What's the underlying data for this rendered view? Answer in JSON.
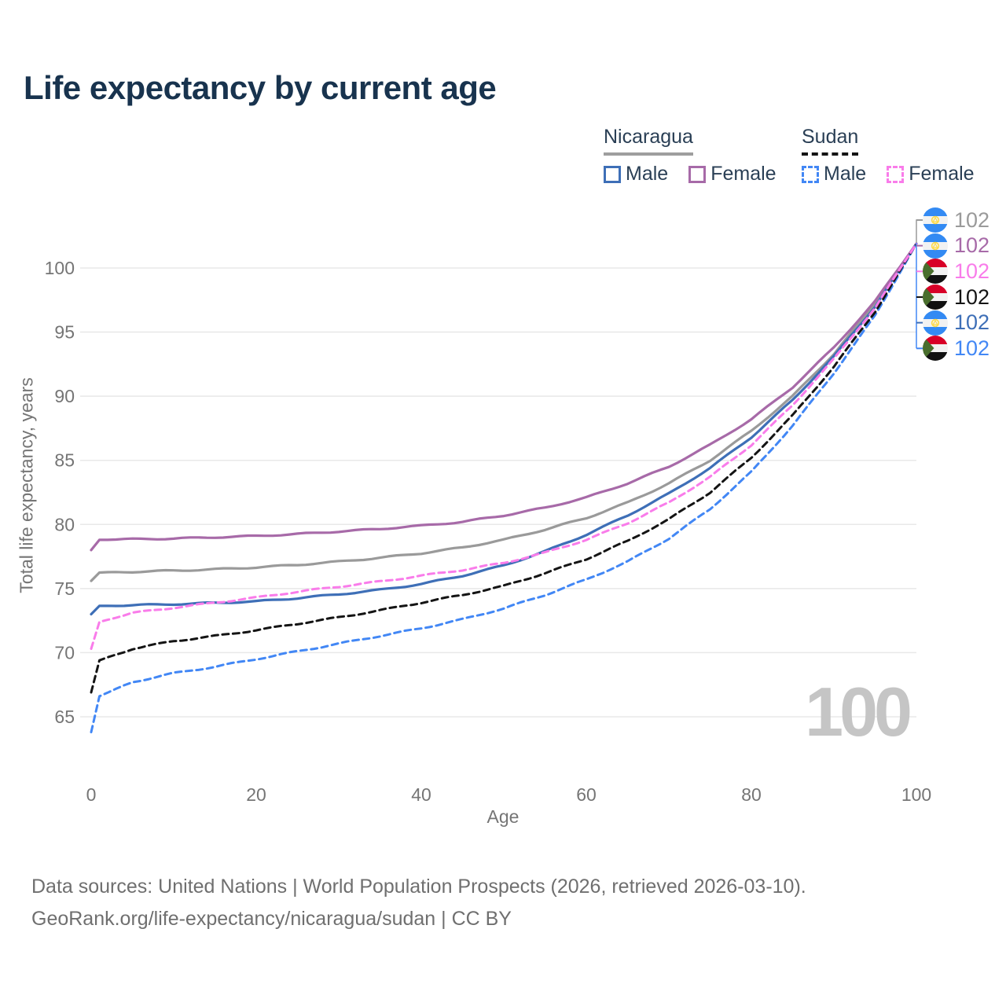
{
  "title": "Life expectancy by current age",
  "watermark": "100",
  "legend": {
    "groups": [
      {
        "name": "Nicaragua",
        "line_style": "solid",
        "underline_color": "#9e9e9e",
        "items": [
          {
            "label": "Male",
            "color": "#3e6fb7",
            "dash": false
          },
          {
            "label": "Female",
            "color": "#a76aa8",
            "dash": false
          }
        ]
      },
      {
        "name": "Sudan",
        "line_style": "dashed",
        "underline_color": "#141414",
        "items": [
          {
            "label": "Male",
            "color": "#4287f5",
            "dash": true
          },
          {
            "label": "Female",
            "color": "#f97cea",
            "dash": true
          }
        ]
      }
    ]
  },
  "footer": {
    "line1": "Data sources: United Nations | World Population Prospects (2026, retrieved 2026-03-10).",
    "line2": "GeoRank.org/life-expectancy/nicaragua/sudan | CC BY"
  },
  "chart_data": {
    "type": "line",
    "title": "Life expectancy by current age",
    "xlabel": "Age",
    "ylabel": "Total life expectancy, years",
    "x_ticks": [
      0,
      20,
      40,
      60,
      80,
      100
    ],
    "y_ticks": [
      65,
      70,
      75,
      80,
      85,
      90,
      95,
      100
    ],
    "xlim": [
      0,
      100
    ],
    "ylim": [
      63,
      103.5
    ],
    "grid": "horizontal-only",
    "legend_position": "top-right",
    "x": [
      0,
      1,
      5,
      10,
      15,
      20,
      25,
      30,
      35,
      40,
      45,
      50,
      55,
      60,
      65,
      70,
      75,
      80,
      85,
      90,
      95,
      100
    ],
    "series": [
      {
        "name": "Nicaragua Both sexes",
        "country": "nicaragua",
        "sex": "both",
        "color": "#9a9a9a",
        "dash": false,
        "values": [
          75.6,
          76.25,
          76.3,
          76.4,
          76.5,
          76.65,
          76.85,
          77.1,
          77.4,
          77.75,
          78.2,
          78.8,
          79.6,
          80.5,
          81.7,
          83.2,
          85.0,
          87.3,
          90.0,
          93.3,
          97.2,
          101.9
        ]
      },
      {
        "name": "Nicaragua Male",
        "country": "nicaragua",
        "sex": "male",
        "color": "#3e6fb7",
        "dash": false,
        "values": [
          73.0,
          73.65,
          73.7,
          73.78,
          73.88,
          74.0,
          74.25,
          74.55,
          74.9,
          75.35,
          76.0,
          76.8,
          77.9,
          79.2,
          80.7,
          82.4,
          84.4,
          86.8,
          89.7,
          93.1,
          97.0,
          101.9
        ]
      },
      {
        "name": "Nicaragua Female",
        "country": "nicaragua",
        "sex": "female",
        "color": "#a76aa8",
        "dash": false,
        "values": [
          78.0,
          78.8,
          78.85,
          78.9,
          79.0,
          79.1,
          79.25,
          79.45,
          79.65,
          79.9,
          80.2,
          80.7,
          81.3,
          82.1,
          83.2,
          84.5,
          86.2,
          88.2,
          90.7,
          93.8,
          97.4,
          101.9
        ]
      },
      {
        "name": "Sudan Male",
        "country": "sudan",
        "sex": "male",
        "color": "#4287f5",
        "dash": true,
        "values": [
          63.8,
          66.6,
          67.7,
          68.4,
          68.9,
          69.5,
          70.1,
          70.7,
          71.3,
          71.9,
          72.6,
          73.45,
          74.5,
          75.7,
          77.1,
          78.9,
          81.2,
          84.1,
          87.7,
          91.8,
          96.3,
          101.9
        ]
      },
      {
        "name": "Sudan Both sexes",
        "country": "sudan",
        "sex": "both",
        "color": "#141414",
        "dash": true,
        "values": [
          66.9,
          69.4,
          70.3,
          70.9,
          71.3,
          71.75,
          72.25,
          72.75,
          73.3,
          73.9,
          74.5,
          75.2,
          76.2,
          77.3,
          78.7,
          80.4,
          82.5,
          85.2,
          88.5,
          92.3,
          96.6,
          101.9
        ]
      },
      {
        "name": "Sudan Female",
        "country": "sudan",
        "sex": "female",
        "color": "#f97cea",
        "dash": true,
        "values": [
          70.3,
          72.4,
          73.1,
          73.5,
          73.9,
          74.3,
          74.75,
          75.15,
          75.55,
          76.0,
          76.45,
          77.0,
          77.8,
          78.8,
          80.1,
          81.7,
          83.7,
          86.2,
          89.3,
          92.9,
          96.9,
          101.9
        ]
      }
    ],
    "end_labels": [
      {
        "value": "102",
        "color": "#9a9a9a",
        "flag": "nicaragua",
        "series": "Nicaragua Both sexes"
      },
      {
        "value": "102",
        "color": "#a76aa8",
        "flag": "nicaragua",
        "series": "Nicaragua Female"
      },
      {
        "value": "102",
        "color": "#f97cea",
        "flag": "sudan",
        "series": "Sudan Female"
      },
      {
        "value": "102",
        "color": "#141414",
        "flag": "sudan",
        "series": "Sudan Both sexes"
      },
      {
        "value": "102",
        "color": "#3e6fb7",
        "flag": "nicaragua",
        "series": "Nicaragua Male"
      },
      {
        "value": "102",
        "color": "#4287f5",
        "flag": "sudan",
        "series": "Sudan Male"
      }
    ]
  }
}
